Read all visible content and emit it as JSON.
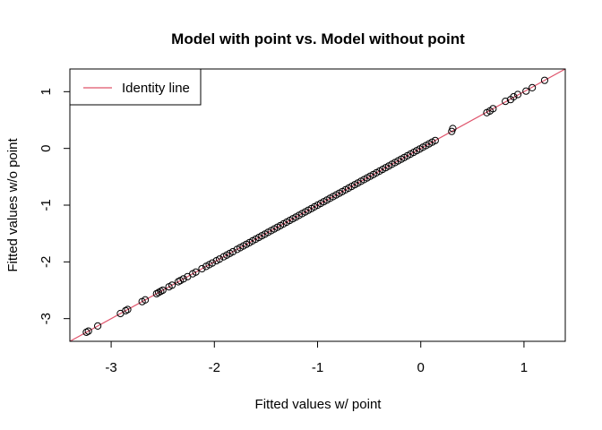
{
  "chart_data": {
    "type": "scatter",
    "title": "Model with point vs. Model without point",
    "xlabel": "Fitted values w/ point",
    "ylabel": "Fitted values w/o point",
    "xlim": [
      -3.4,
      1.4
    ],
    "ylim": [
      -3.4,
      1.4
    ],
    "x_ticks": [
      -3,
      -2,
      -1,
      0,
      1
    ],
    "y_ticks": [
      -3,
      -2,
      -1,
      0,
      1
    ],
    "grid": false,
    "legend": {
      "position": "top-left",
      "entries": [
        {
          "label": "Identity line",
          "color": "#DF536B"
        }
      ]
    },
    "reference_line": {
      "name": "Identity line",
      "slope": 1,
      "intercept": 0,
      "color": "#DF536B"
    },
    "point_color": "#000000",
    "points": {
      "x": [
        -3.24,
        -3.22,
        -3.13,
        -2.91,
        -2.86,
        -2.84,
        -2.7,
        -2.67,
        -2.56,
        -2.54,
        -2.52,
        -2.5,
        -2.44,
        -2.41,
        -2.35,
        -2.33,
        -2.3,
        -2.26,
        -2.21,
        -2.18,
        -2.12,
        -2.08,
        -2.05,
        -2.02,
        -1.98,
        -1.95,
        -1.91,
        -1.88,
        -1.85,
        -1.82,
        -1.78,
        -1.75,
        -1.72,
        -1.69,
        -1.66,
        -1.63,
        -1.6,
        -1.57,
        -1.54,
        -1.51,
        -1.48,
        -1.45,
        -1.42,
        -1.39,
        -1.36,
        -1.33,
        -1.3,
        -1.27,
        -1.24,
        -1.21,
        -1.18,
        -1.15,
        -1.12,
        -1.09,
        -1.06,
        -1.03,
        -1.0,
        -0.97,
        -0.94,
        -0.91,
        -0.88,
        -0.85,
        -0.82,
        -0.79,
        -0.76,
        -0.73,
        -0.7,
        -0.67,
        -0.64,
        -0.61,
        -0.58,
        -0.55,
        -0.52,
        -0.49,
        -0.46,
        -0.43,
        -0.4,
        -0.37,
        -0.34,
        -0.31,
        -0.28,
        -0.25,
        -0.22,
        -0.19,
        -0.16,
        -0.13,
        -0.1,
        -0.07,
        -0.04,
        -0.01,
        0.02,
        0.05,
        0.08,
        0.11,
        0.14,
        0.3,
        0.31,
        0.64,
        0.67,
        0.7,
        0.82,
        0.87,
        0.9,
        0.94,
        1.02,
        1.08,
        1.2
      ],
      "y": [
        -3.24,
        -3.22,
        -3.13,
        -2.91,
        -2.86,
        -2.84,
        -2.7,
        -2.67,
        -2.56,
        -2.54,
        -2.52,
        -2.5,
        -2.44,
        -2.41,
        -2.35,
        -2.33,
        -2.3,
        -2.26,
        -2.21,
        -2.18,
        -2.12,
        -2.08,
        -2.05,
        -2.02,
        -1.98,
        -1.95,
        -1.91,
        -1.88,
        -1.85,
        -1.82,
        -1.78,
        -1.75,
        -1.72,
        -1.69,
        -1.66,
        -1.63,
        -1.6,
        -1.57,
        -1.54,
        -1.51,
        -1.48,
        -1.45,
        -1.42,
        -1.39,
        -1.36,
        -1.33,
        -1.3,
        -1.27,
        -1.24,
        -1.21,
        -1.18,
        -1.15,
        -1.12,
        -1.09,
        -1.06,
        -1.03,
        -1.0,
        -0.97,
        -0.94,
        -0.91,
        -0.88,
        -0.85,
        -0.82,
        -0.79,
        -0.76,
        -0.73,
        -0.7,
        -0.67,
        -0.64,
        -0.61,
        -0.58,
        -0.55,
        -0.52,
        -0.49,
        -0.46,
        -0.43,
        -0.4,
        -0.37,
        -0.34,
        -0.31,
        -0.28,
        -0.25,
        -0.22,
        -0.19,
        -0.16,
        -0.13,
        -0.1,
        -0.07,
        -0.04,
        -0.01,
        0.02,
        0.05,
        0.08,
        0.11,
        0.14,
        0.3,
        0.35,
        0.63,
        0.66,
        0.7,
        0.83,
        0.86,
        0.91,
        0.95,
        1.01,
        1.07,
        1.2
      ]
    }
  }
}
